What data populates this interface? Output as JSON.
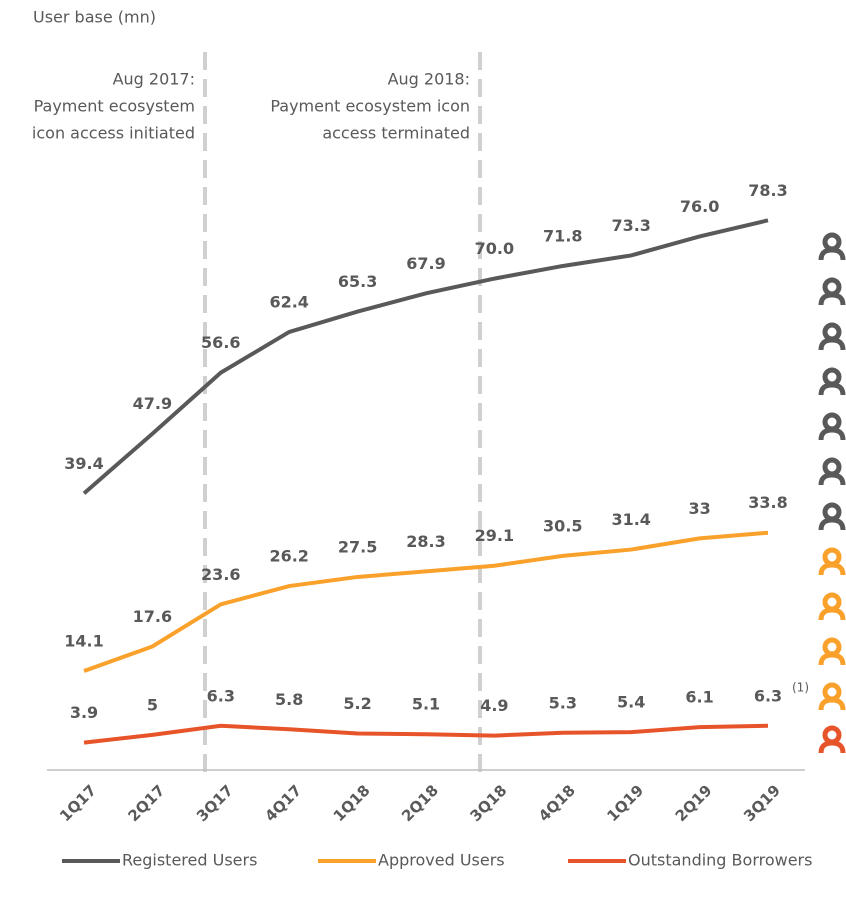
{
  "chart_data": {
    "type": "line",
    "ylabel": "User base (mn)",
    "categories": [
      "1Q17",
      "2Q17",
      "3Q17",
      "4Q17",
      "1Q18",
      "2Q18",
      "3Q18",
      "4Q18",
      "1Q19",
      "2Q19",
      "3Q19"
    ],
    "series": [
      {
        "name": "Registered Users",
        "color": "#595959",
        "values": [
          39.4,
          47.9,
          56.6,
          62.4,
          65.3,
          67.9,
          70.0,
          71.8,
          73.3,
          76.0,
          78.3
        ],
        "value_labels": [
          "39.4",
          "47.9",
          "56.6",
          "62.4",
          "65.3",
          "67.9",
          "70.0",
          "71.8",
          "73.3",
          "76.0",
          "78.3"
        ]
      },
      {
        "name": "Approved Users",
        "color": "#f9a12b",
        "values": [
          14.1,
          17.6,
          23.6,
          26.2,
          27.5,
          28.3,
          29.1,
          30.5,
          31.4,
          33.0,
          33.8
        ]
      },
      {
        "name": "Outstanding Borrowers",
        "color": "#e8542a",
        "values": [
          3.9,
          5.0,
          6.3,
          5.8,
          5.2,
          5.1,
          4.9,
          5.3,
          5.4,
          6.1,
          6.3
        ]
      }
    ],
    "label_color": "#e8542a",
    "ylim": [
      0,
      100
    ],
    "annotations": [
      {
        "lines": [
          "Aug 2017:",
          "Payment ecosystem",
          "icon access initiated"
        ]
      },
      {
        "lines": [
          "Aug 2018:",
          "Payment ecosystem icon",
          "access terminated"
        ]
      }
    ],
    "footnote_marker": "(1)",
    "legend": "bottom"
  }
}
